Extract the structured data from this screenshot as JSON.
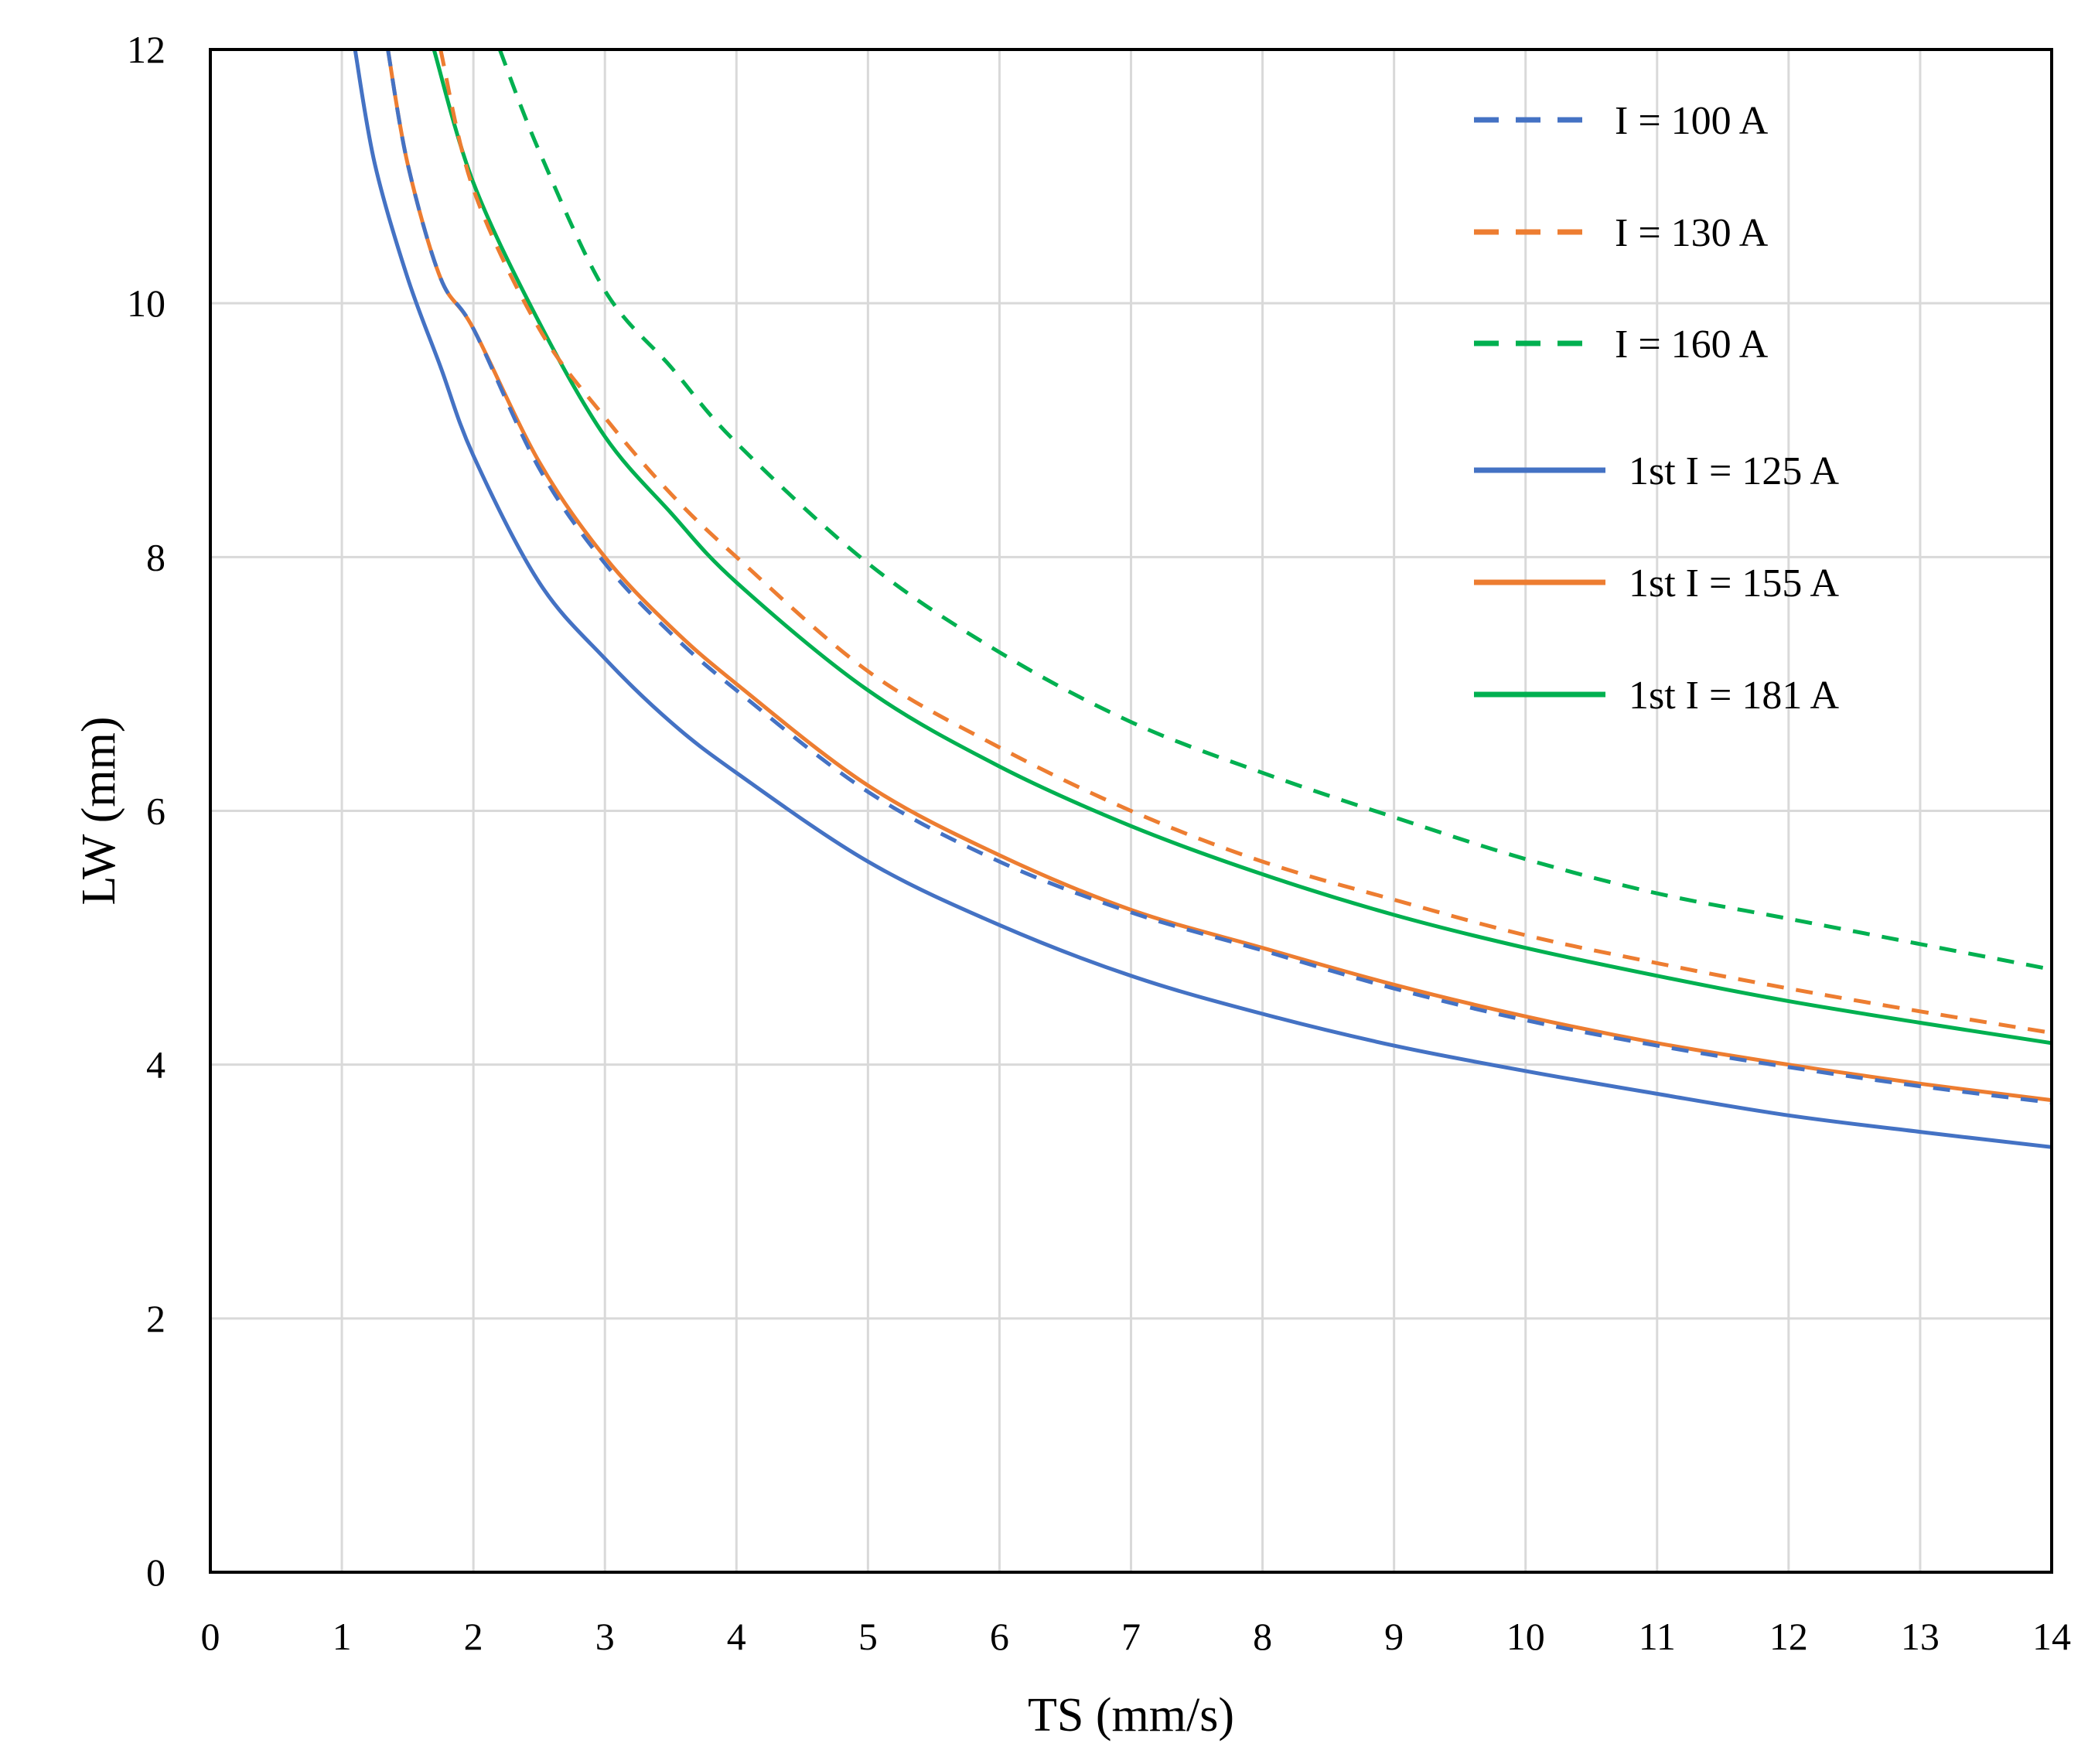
{
  "chart_data": {
    "type": "line",
    "title": "",
    "xlabel": "TS (mm/s)",
    "ylabel": "LW (mm)",
    "xlim": [
      0,
      14
    ],
    "ylim": [
      0,
      12
    ],
    "xticks": [
      0,
      1,
      2,
      3,
      4,
      5,
      6,
      7,
      8,
      9,
      10,
      11,
      12,
      13,
      14
    ],
    "yticks": [
      0,
      2,
      4,
      6,
      8,
      10,
      12
    ],
    "grid": true,
    "legend_position": "top-right",
    "series": [
      {
        "name": "I  = 100 A",
        "style": "dashed",
        "color": "#4472C4",
        "x": [
          1.35,
          1.5,
          1.75,
          2,
          2.5,
          3,
          3.5,
          4,
          5,
          6,
          7,
          8,
          9,
          10,
          11,
          12,
          13,
          14
        ],
        "y": [
          12,
          11.1,
          10.2,
          9.8,
          8.7,
          7.95,
          7.4,
          6.95,
          6.15,
          5.6,
          5.2,
          4.9,
          4.6,
          4.35,
          4.15,
          3.98,
          3.83,
          3.7
        ]
      },
      {
        "name": "I = 130 A",
        "style": "dashed",
        "color": "#ED7D31",
        "x": [
          1.75,
          2,
          2.5,
          3,
          3.5,
          4,
          5,
          6,
          7,
          8,
          9,
          10,
          11,
          12,
          13,
          14
        ],
        "y": [
          12,
          10.9,
          9.8,
          9.1,
          8.5,
          8.0,
          7.1,
          6.5,
          6.0,
          5.6,
          5.3,
          5.02,
          4.8,
          4.6,
          4.42,
          4.25
        ]
      },
      {
        "name": "I = 160 A",
        "style": "dashed",
        "color": "#00B050",
        "x": [
          2.2,
          2.5,
          3,
          3.5,
          4,
          5,
          6,
          7,
          8,
          9,
          10,
          11,
          12,
          13,
          14
        ],
        "y": [
          12,
          11.2,
          10.1,
          9.5,
          8.9,
          7.95,
          7.25,
          6.7,
          6.3,
          5.95,
          5.62,
          5.35,
          5.15,
          4.95,
          4.75
        ]
      },
      {
        "name": "1st I = 125 A",
        "style": "solid",
        "color": "#4472C4",
        "x": [
          1.1,
          1.25,
          1.5,
          1.75,
          2,
          2.5,
          3,
          3.5,
          4,
          5,
          6,
          7,
          8,
          9,
          10,
          11,
          12,
          13,
          14
        ],
        "y": [
          12,
          11.1,
          10.2,
          9.5,
          8.8,
          7.8,
          7.2,
          6.7,
          6.3,
          5.6,
          5.1,
          4.7,
          4.4,
          4.15,
          3.95,
          3.77,
          3.6,
          3.47,
          3.35
        ]
      },
      {
        "name": "1st I = 155 A",
        "style": "solid",
        "color": "#ED7D31",
        "x": [
          1.35,
          1.5,
          1.75,
          2,
          2.5,
          3,
          3.5,
          4,
          5,
          6,
          7,
          8,
          9,
          10,
          11,
          12,
          13,
          14
        ],
        "y": [
          12,
          11.1,
          10.2,
          9.8,
          8.75,
          8.0,
          7.45,
          7.0,
          6.2,
          5.65,
          5.22,
          4.92,
          4.63,
          4.38,
          4.17,
          4.0,
          3.85,
          3.72
        ]
      },
      {
        "name": "1st I = 181 A",
        "style": "solid",
        "color": "#00B050",
        "x": [
          1.7,
          2,
          2.5,
          3,
          3.5,
          4,
          5,
          6,
          7,
          8,
          9,
          10,
          11,
          12,
          13,
          14
        ],
        "y": [
          12,
          10.95,
          9.85,
          8.95,
          8.35,
          7.8,
          6.95,
          6.35,
          5.88,
          5.5,
          5.18,
          4.92,
          4.7,
          4.5,
          4.33,
          4.17
        ]
      }
    ]
  }
}
